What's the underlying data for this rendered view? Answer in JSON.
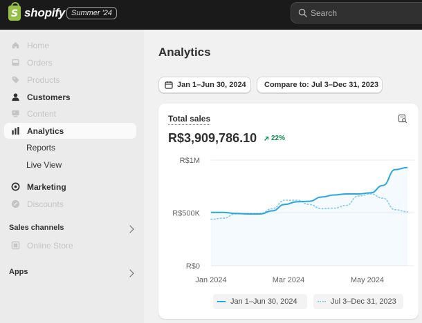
{
  "header": {
    "brand": "shopify",
    "brand_mark": "S",
    "edition_badge": "Summer '24",
    "search_placeholder": "Search"
  },
  "sidebar": {
    "items": [
      {
        "label": "Home",
        "icon": "home-icon",
        "state": "disabled"
      },
      {
        "label": "Orders",
        "icon": "inbox-icon",
        "state": "disabled"
      },
      {
        "label": "Products",
        "icon": "tag-icon",
        "state": "disabled"
      },
      {
        "label": "Customers",
        "icon": "person-icon",
        "state": "normal"
      },
      {
        "label": "Content",
        "icon": "content-icon",
        "state": "disabled"
      },
      {
        "label": "Analytics",
        "icon": "chart-bars-icon",
        "state": "active"
      }
    ],
    "analytics_sub": [
      "Reports",
      "Live View"
    ],
    "items2": [
      {
        "label": "Marketing",
        "icon": "target-icon",
        "state": "normal"
      },
      {
        "label": "Discounts",
        "icon": "discount-icon",
        "state": "disabled"
      }
    ],
    "sales_channels": {
      "title": "Sales channels",
      "items": [
        {
          "label": "Online Store",
          "icon": "store-icon",
          "state": "disabled"
        }
      ]
    },
    "apps": {
      "title": "Apps"
    }
  },
  "main": {
    "title": "Analytics",
    "date_range": "Jan 1–Jun 30, 2024",
    "compare_label": "Compare to: Jul 3–Dec 31, 2023"
  },
  "card": {
    "title": "Total sales",
    "value": "R$3,909,786.10",
    "delta": "22%",
    "delta_direction": "up",
    "legend": [
      "Jan 1–Jun 30, 2024",
      "Jul 3–Dec 31, 2023"
    ]
  },
  "colors": {
    "accent_line": "#29a6e0",
    "compare_line": "#8fcdee",
    "positive": "#0c8f4d"
  },
  "chart_data": {
    "type": "line",
    "title": "Total sales",
    "x_tick_labels": [
      "Jan 2024",
      "Mar 2024",
      "May 2024"
    ],
    "y_tick_labels": [
      "R$0",
      "R$500K",
      "R$1M"
    ],
    "ylim": [
      0,
      1000000
    ],
    "grid": true,
    "series": [
      {
        "name": "Jan 1–Jun 30, 2024",
        "style": "solid",
        "values": [
          505000,
          505000,
          495000,
          490000,
          490000,
          520000,
          580000,
          605000,
          610000,
          650000,
          670000,
          680000,
          680000,
          690000,
          760000,
          910000,
          930000
        ]
      },
      {
        "name": "Jul 3–Dec 31, 2023",
        "style": "dotted",
        "values": [
          440000,
          450000,
          490000,
          495000,
          495000,
          540000,
          620000,
          620000,
          580000,
          540000,
          545000,
          570000,
          660000,
          680000,
          640000,
          530000,
          510000
        ]
      }
    ]
  }
}
